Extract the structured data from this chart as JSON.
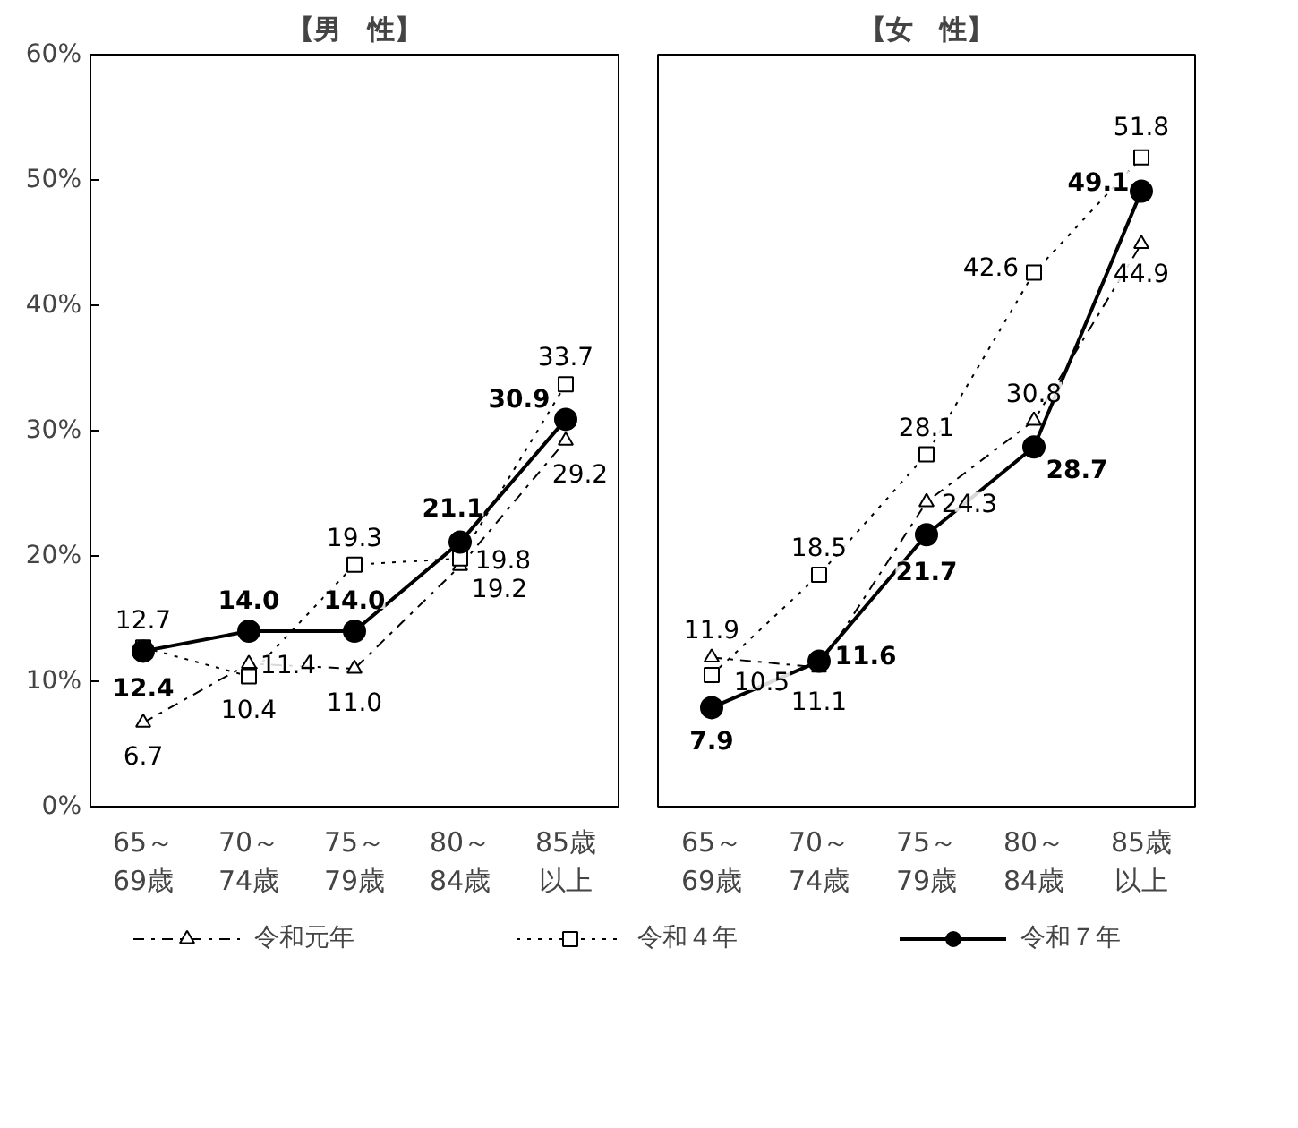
{
  "chart_data": [
    {
      "type": "line",
      "title": "【男　性】",
      "categories": [
        "65～69歳",
        "70～74歳",
        "75～79歳",
        "80～84歳",
        "85歳以上"
      ],
      "ylim": [
        0,
        60
      ],
      "yticks": [
        {
          "value": 0,
          "label": "0%"
        },
        {
          "value": 10,
          "label": "10%"
        },
        {
          "value": 20,
          "label": "20%"
        },
        {
          "value": 30,
          "label": "30%"
        },
        {
          "value": 40,
          "label": "40%"
        },
        {
          "value": 50,
          "label": "50%"
        },
        {
          "value": 60,
          "label": "60%"
        }
      ],
      "grid": false,
      "legend": "bottom",
      "series": [
        {
          "name": "令和元年",
          "color": "#000000",
          "marker": "triangle",
          "line_style": "dashed",
          "values": [
            6.7,
            11.4,
            11.0,
            19.2,
            29.2
          ],
          "value_labels": [
            "6.7",
            "11.4",
            "11.0",
            "19.2",
            "29.2"
          ]
        },
        {
          "name": "令和４年",
          "color": "#000000",
          "marker": "square",
          "line_style": "dotted",
          "values": [
            12.7,
            10.4,
            19.3,
            19.8,
            33.7
          ],
          "value_labels": [
            "12.7",
            "10.4",
            "19.3",
            "19.8",
            "33.7"
          ]
        },
        {
          "name": "令和７年",
          "color": "#000000",
          "marker": "circle",
          "line_style": "solid",
          "values": [
            12.4,
            14.0,
            14.0,
            21.1,
            30.9
          ],
          "value_labels": [
            "12.4",
            "14.0",
            "14.0",
            "21.1",
            "30.9"
          ]
        }
      ]
    },
    {
      "type": "line",
      "title": "【女　性】",
      "categories": [
        "65～69歳",
        "70～74歳",
        "75～79歳",
        "80～84歳",
        "85歳以上"
      ],
      "ylim": [
        0,
        60
      ],
      "grid": false,
      "tick_labels": "x",
      "series": [
        {
          "color": "#000000",
          "marker": "triangle",
          "line_style": "dashed",
          "values": [
            11.9,
            11.1,
            24.3,
            30.8,
            44.9
          ],
          "value_labels": [
            "11.9",
            "11.1",
            "24.3",
            "30.8",
            "44.9"
          ]
        },
        {
          "color": "#000000",
          "marker": "square",
          "line_style": "dotted",
          "values": [
            10.5,
            18.5,
            28.1,
            42.6,
            51.8
          ],
          "value_labels": [
            "10.5",
            "18.5",
            "28.1",
            "42.6",
            "51.8"
          ]
        },
        {
          "color": "#000000",
          "marker": "circle",
          "line_style": "solid",
          "values": [
            7.9,
            11.6,
            21.7,
            28.7,
            49.1
          ],
          "value_labels": [
            "7.9",
            "11.6",
            "21.7",
            "28.7",
            "49.1"
          ]
        }
      ]
    }
  ]
}
